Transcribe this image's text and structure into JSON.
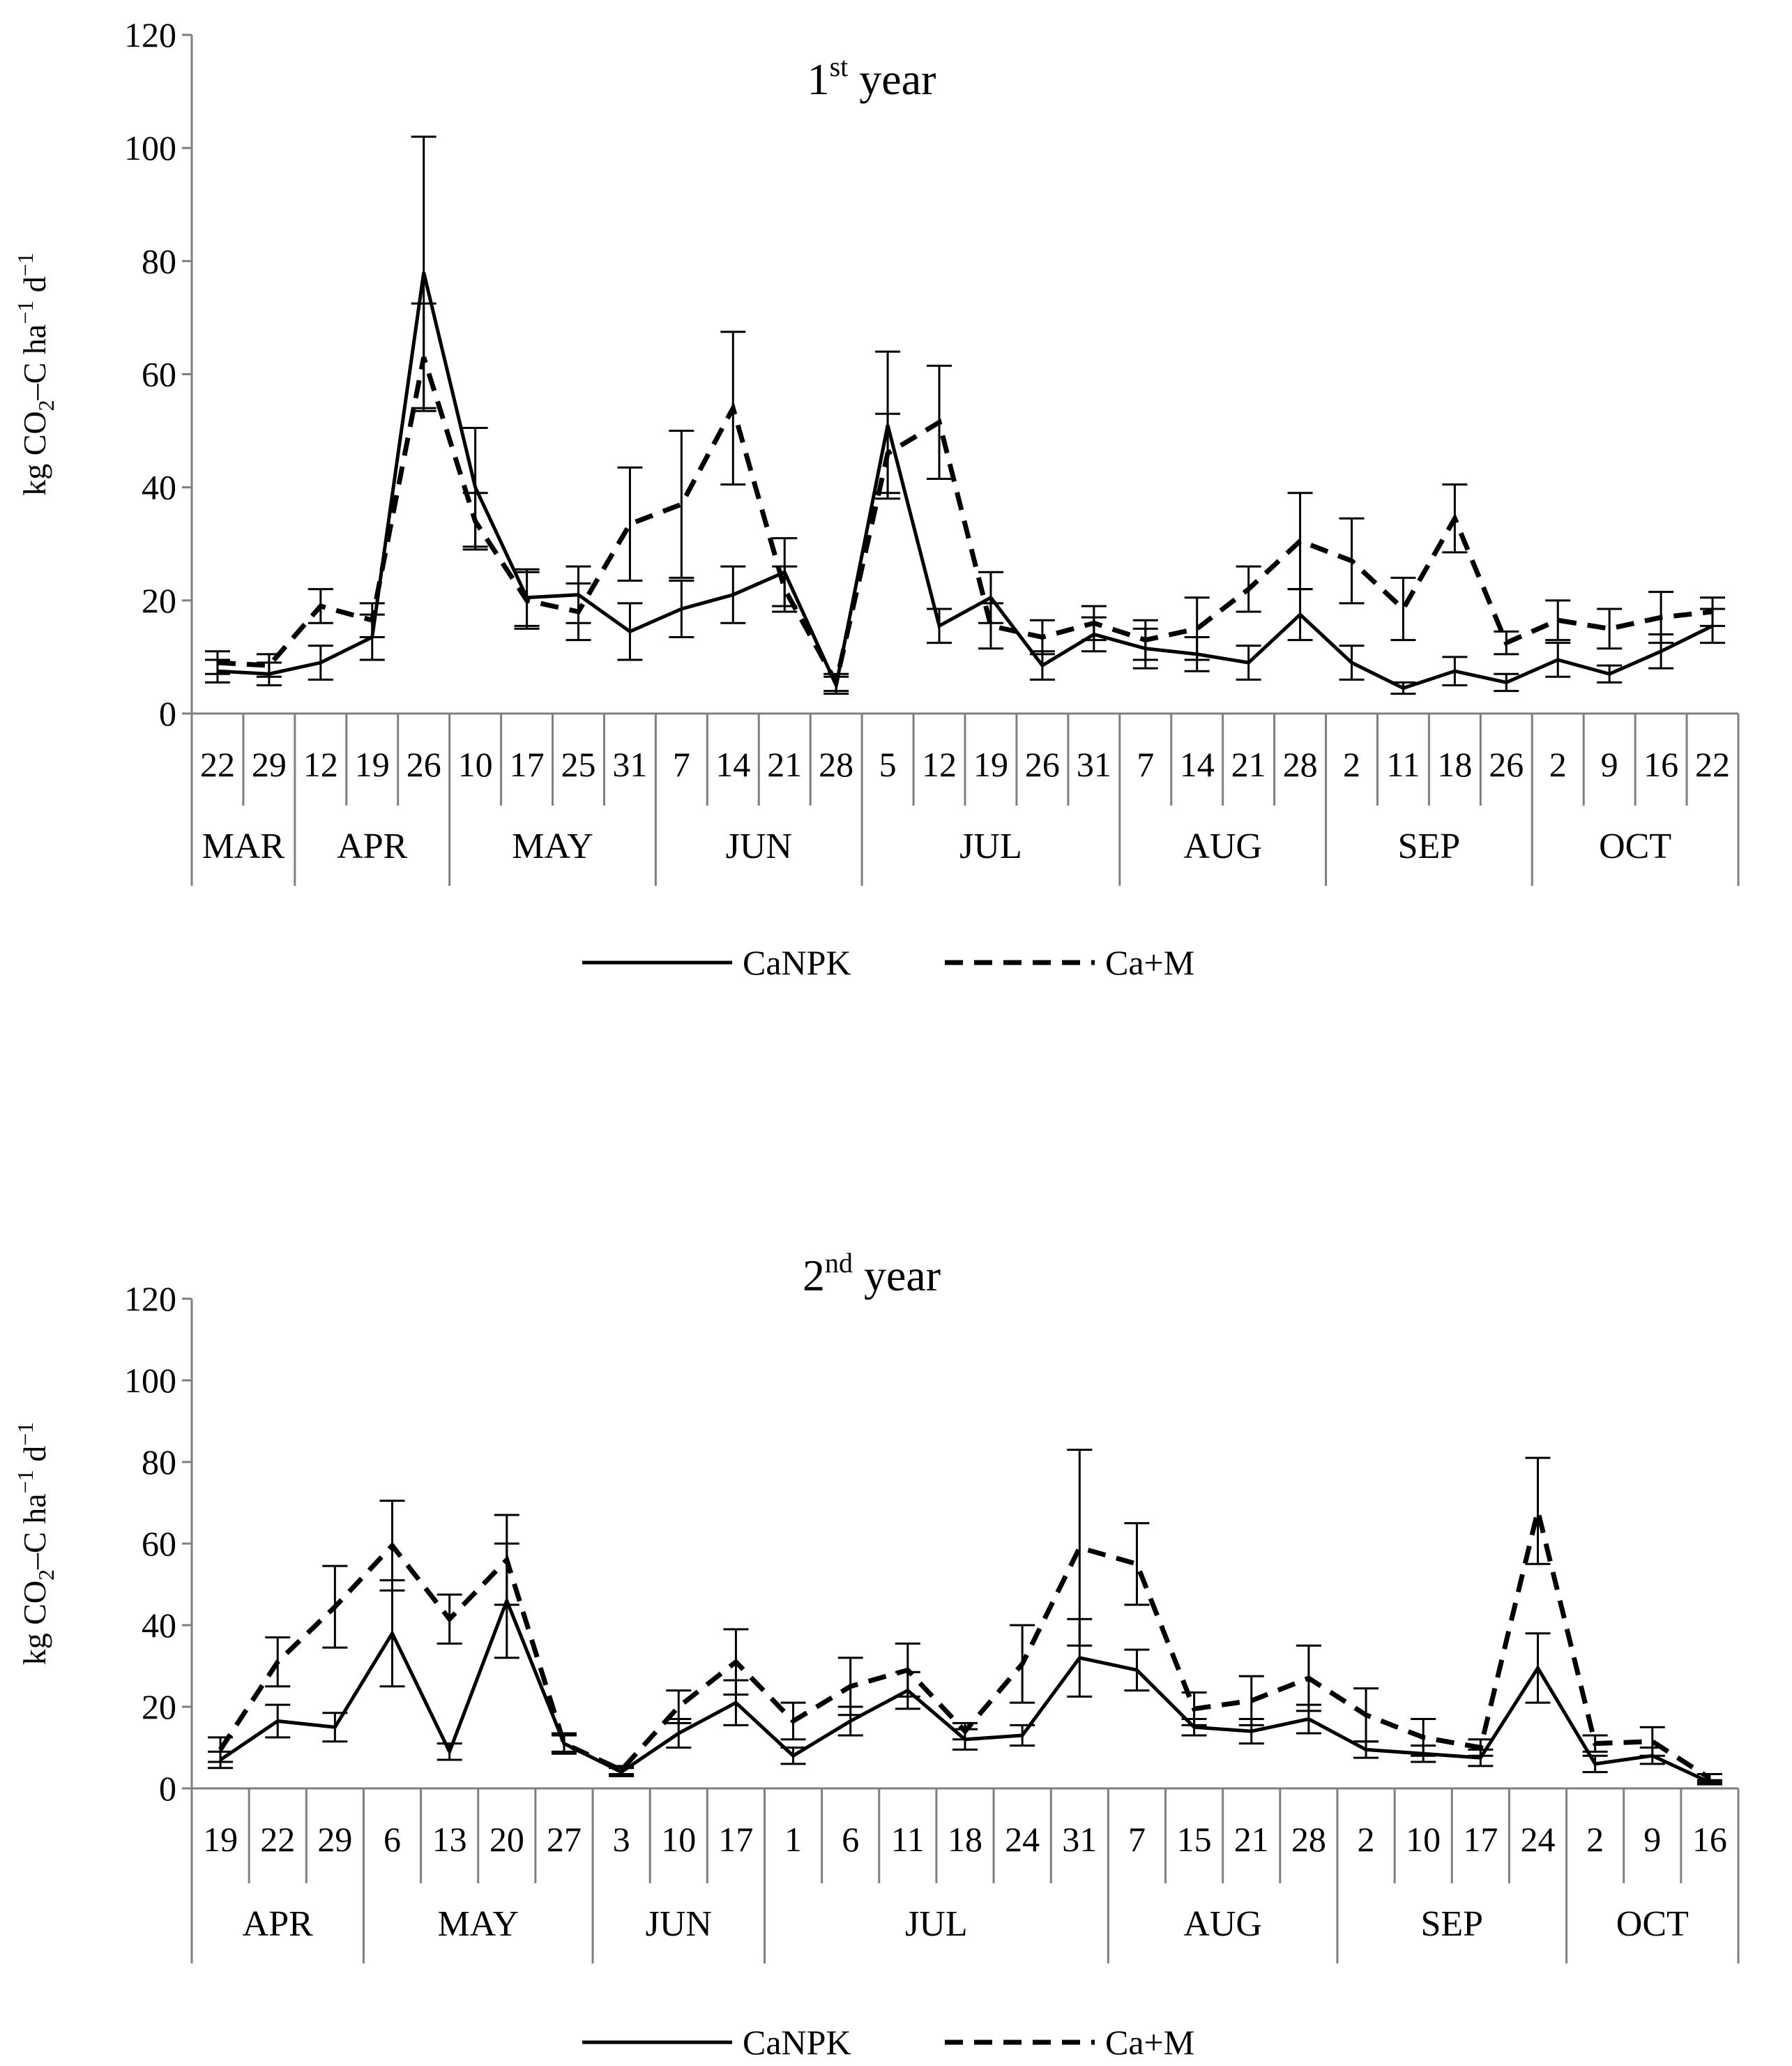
{
  "chart_data": [
    {
      "type": "line",
      "title": "1st year",
      "title_main": "1",
      "title_sup": "st",
      "title_rest": " year",
      "ylabel_parts": [
        "kg CO",
        "2",
        "–C ha",
        "−1",
        " d",
        "−1"
      ],
      "ylim": [
        0,
        120
      ],
      "yticks": [
        "0",
        "20",
        "40",
        "60",
        "80",
        "100",
        "120"
      ],
      "categories": [
        "22",
        "29",
        "12",
        "19",
        "26",
        "10",
        "17",
        "25",
        "31",
        "7",
        "14",
        "21",
        "28",
        "5",
        "12",
        "19",
        "26",
        "31",
        "7",
        "14",
        "21",
        "28",
        "2",
        "11",
        "18",
        "26",
        "2",
        "9",
        "16",
        "22"
      ],
      "months": [
        {
          "label": "MAR",
          "count": 2
        },
        {
          "label": "APR",
          "count": 3
        },
        {
          "label": "MAY",
          "count": 4
        },
        {
          "label": "JUN",
          "count": 4
        },
        {
          "label": "JUL",
          "count": 5
        },
        {
          "label": "AUG",
          "count": 4
        },
        {
          "label": "SEP",
          "count": 4
        },
        {
          "label": "OCT",
          "count": 4
        }
      ],
      "series": [
        {
          "name": "CaNPK",
          "style": "solid",
          "values": [
            7.5,
            7,
            9,
            13.5,
            78,
            40,
            20.5,
            21,
            14.5,
            18.5,
            21,
            25,
            5,
            51,
            15.5,
            20.5,
            8.5,
            14,
            11.5,
            10.5,
            9,
            17.5,
            9,
            4.5,
            7.5,
            5.5,
            9.5,
            7,
            11,
            15.5
          ],
          "errors": [
            2,
            2,
            3,
            4,
            24,
            10.5,
            5,
            5,
            5,
            5,
            5,
            6,
            1.5,
            13,
            3,
            4.5,
            2.5,
            3,
            3.5,
            3,
            3,
            4.5,
            3,
            1,
            2.5,
            1.5,
            3,
            1.5,
            3,
            3
          ]
        },
        {
          "name": "Ca+M",
          "style": "dashed",
          "values": [
            9,
            8.5,
            19,
            16.5,
            63,
            34,
            20,
            18,
            33.5,
            37,
            54,
            22,
            5.5,
            46,
            51.5,
            15.5,
            13.5,
            16,
            13,
            15,
            22,
            30.5,
            27,
            18.5,
            34.5,
            12.5,
            16.5,
            15,
            17,
            18
          ],
          "errors": [
            2,
            2,
            3,
            3,
            9.5,
            5,
            5,
            5,
            10,
            13,
            13.5,
            4,
            1.5,
            7,
            10,
            4,
            3,
            3,
            3.5,
            5.5,
            4,
            8.5,
            7.5,
            5.5,
            6,
            2,
            3.5,
            3.5,
            4.5,
            2.5
          ]
        }
      ],
      "legend": [
        "CaNPK",
        "Ca+M"
      ]
    },
    {
      "type": "line",
      "title": "2nd year",
      "title_main": "2",
      "title_sup": "nd",
      "title_rest": " year",
      "ylabel_parts": [
        "kg CO",
        "2",
        "–C ha",
        "−1",
        " d",
        "−1"
      ],
      "ylim": [
        0,
        120
      ],
      "yticks": [
        "0",
        "20",
        "40",
        "60",
        "80",
        "100",
        "120"
      ],
      "categories": [
        "19",
        "22",
        "29",
        "6",
        "13",
        "20",
        "27",
        "3",
        "10",
        "17",
        "1",
        "6",
        "11",
        "18",
        "24",
        "31",
        "7",
        "15",
        "21",
        "28",
        "2",
        "10",
        "17",
        "24",
        "2",
        "9",
        "16"
      ],
      "months": [
        {
          "label": "APR",
          "count": 3
        },
        {
          "label": "MAY",
          "count": 4
        },
        {
          "label": "JUN",
          "count": 3
        },
        {
          "label": "JUL",
          "count": 6
        },
        {
          "label": "AUG",
          "count": 4
        },
        {
          "label": "SEP",
          "count": 4
        },
        {
          "label": "OCT",
          "count": 3
        }
      ],
      "series": [
        {
          "name": "CaNPK",
          "style": "solid",
          "values": [
            7,
            16.5,
            15,
            38,
            9,
            46,
            11,
            4,
            13.5,
            21,
            8,
            16.5,
            24,
            12,
            13,
            32,
            29,
            15,
            14,
            17,
            9.5,
            8.5,
            7.5,
            29.5,
            6,
            8,
            1.5
          ],
          "errors": [
            2,
            4,
            3.5,
            13,
            2,
            14,
            2.5,
            1,
            3.5,
            5.5,
            2,
            3.5,
            4.5,
            2.5,
            2.5,
            9.5,
            5,
            2,
            3,
            3.5,
            2,
            2,
            2,
            8.5,
            2,
            2,
            0.5
          ]
        },
        {
          "name": "Ca+M",
          "style": "dashed",
          "values": [
            9.5,
            31,
            44.5,
            59.5,
            41.5,
            56,
            11,
            4.5,
            20,
            31,
            16.5,
            25,
            29,
            14,
            30.5,
            59,
            55,
            19.5,
            21.5,
            27,
            18,
            12.5,
            10,
            68,
            11,
            11.5,
            2.5
          ],
          "errors": [
            3,
            6,
            10,
            11,
            6,
            11,
            2,
            1,
            4,
            8,
            4.5,
            7,
            6.5,
            2,
            9.5,
            24,
            10,
            4,
            6,
            8,
            6.5,
            4.5,
            2,
            13,
            2,
            3.5,
            1
          ]
        }
      ],
      "legend": [
        "CaNPK",
        "Ca+M"
      ]
    }
  ]
}
